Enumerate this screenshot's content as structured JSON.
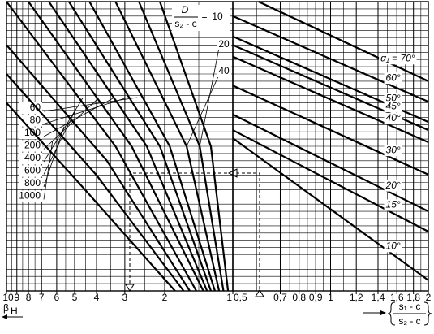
{
  "chart_data": [
    {
      "type": "line",
      "color": "#000000",
      "log_x": true,
      "xlim": [
        10,
        1
      ],
      "ylim": [
        0,
        100
      ],
      "xticks": [
        10,
        9,
        8,
        7,
        6,
        5,
        4,
        3,
        2,
        1
      ],
      "x_label": {
        "symbol": "β",
        "subscript": "H"
      },
      "curve_label": {
        "numerator": "D",
        "denominator": "s₂ - c",
        "equals": "="
      },
      "series": [
        {
          "name": "10",
          "x": [
            2.1,
            1.25,
            1.05
          ],
          "values": [
            100,
            50,
            0
          ]
        },
        {
          "name": "20",
          "x": [
            2.6,
            1.4,
            1.1
          ],
          "values": [
            100,
            50,
            0
          ]
        },
        {
          "name": "40",
          "x": [
            3.3,
            1.6,
            1.15
          ],
          "values": [
            100,
            50,
            0
          ]
        },
        {
          "name": "60",
          "x": [
            4.3,
            1.9,
            1.2
          ],
          "values": [
            100,
            50,
            0
          ]
        },
        {
          "name": "80",
          "x": [
            5.3,
            2.1,
            1.25
          ],
          "values": [
            100,
            50,
            0
          ]
        },
        {
          "name": "100",
          "x": [
            6.5,
            2.4,
            1.3
          ],
          "values": [
            100,
            50,
            0
          ]
        },
        {
          "name": "200",
          "x": [
            8,
            2.8,
            1.35
          ],
          "values": [
            100,
            50,
            0
          ]
        },
        {
          "name": "400",
          "x": [
            10,
            3.3,
            1.45
          ],
          "values": [
            100,
            50,
            0
          ]
        },
        {
          "name": "600",
          "x": [
            10,
            3.6,
            1.55
          ],
          "values": [
            85,
            45,
            0
          ]
        },
        {
          "name": "800",
          "x": [
            10,
            4,
            1.65
          ],
          "values": [
            75,
            40,
            0
          ]
        },
        {
          "name": "1000",
          "x": [
            10,
            4.5,
            1.8
          ],
          "values": [
            65,
            35,
            0
          ]
        }
      ]
    },
    {
      "type": "line",
      "color": "#000000",
      "log_x": true,
      "xlim": [
        0.5,
        2
      ],
      "ylim": [
        0,
        100
      ],
      "xticks": [
        {
          "value": 0.5,
          "label": "0,5"
        },
        {
          "value": 0.7,
          "label": "0,7"
        },
        {
          "value": 0.8,
          "label": "0,8"
        },
        {
          "value": 0.9,
          "label": "0,9"
        },
        1,
        {
          "value": 1.2,
          "label": "1,2"
        },
        {
          "value": 1.4,
          "label": "1,4"
        },
        {
          "value": 1.6,
          "label": "1,6"
        },
        {
          "value": 1.8,
          "label": "1,8"
        },
        2
      ],
      "x_label": {
        "numerator": "s₁ - c",
        "denominator": "s₂ - c"
      },
      "series": [
        {
          "name": "α₁ = 70°",
          "x": [
            0.6,
            2
          ],
          "values": [
            100,
            72.5
          ]
        },
        {
          "name": "60°",
          "x": [
            0.5,
            2
          ],
          "values": [
            95,
            65.4
          ]
        },
        {
          "name": "50°",
          "x": [
            0.5,
            2
          ],
          "values": [
            88,
            58.4
          ]
        },
        {
          "name": "45°",
          "x": [
            0.5,
            2
          ],
          "values": [
            85,
            55.6
          ]
        },
        {
          "name": "40°",
          "x": [
            0.5,
            2
          ],
          "values": [
            81,
            51.4
          ]
        },
        {
          "name": "30°",
          "x": [
            0.5,
            2
          ],
          "values": [
            71,
            40.2
          ]
        },
        {
          "name": "20°",
          "x": [
            0.5,
            2
          ],
          "values": [
            61,
            27.5
          ]
        },
        {
          "name": "15°",
          "x": [
            0.5,
            2
          ],
          "values": [
            55.6,
            20.5
          ]
        },
        {
          "name": "10°",
          "x": [
            0.5,
            2
          ],
          "values": [
            52.8,
            3.7
          ]
        }
      ]
    }
  ]
}
